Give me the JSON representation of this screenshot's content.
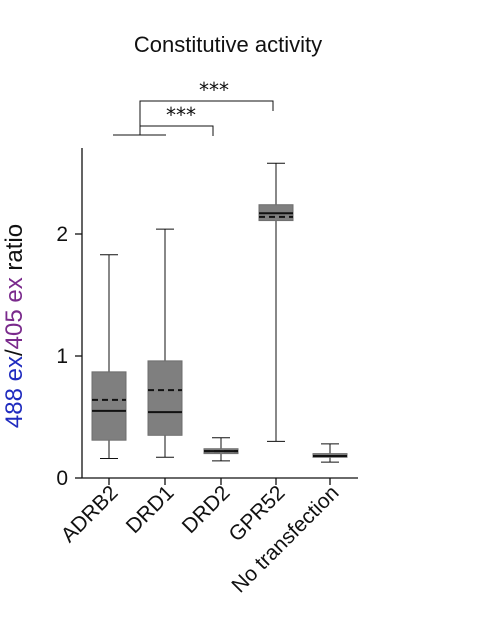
{
  "chart_data": {
    "type": "box",
    "title": "Constitutive activity",
    "ylabel": {
      "parts": [
        {
          "text": "488 ex",
          "color": "#1f2bbf"
        },
        {
          "text": "/",
          "color": "#111111"
        },
        {
          "text": "405 ex",
          "color": "#7a2a8c"
        },
        {
          "text": " ratio",
          "color": "#111111"
        }
      ]
    },
    "xlabel": "",
    "ylim": [
      0,
      2.7
    ],
    "yticks": [
      0,
      1,
      2
    ],
    "ytick_labels": [
      "0",
      "1",
      "2"
    ],
    "categories": [
      "ADRB2",
      "DRD1",
      "DRD2",
      "GPR52",
      "No transfection"
    ],
    "boxes": [
      {
        "category": "ADRB2",
        "whisker_low": 0.16,
        "q1": 0.31,
        "median": 0.55,
        "mean": 0.64,
        "q3": 0.87,
        "whisker_high": 1.83
      },
      {
        "category": "DRD1",
        "whisker_low": 0.17,
        "q1": 0.35,
        "median": 0.54,
        "mean": 0.72,
        "q3": 0.96,
        "whisker_high": 2.04
      },
      {
        "category": "DRD2",
        "whisker_low": 0.14,
        "q1": 0.2,
        "median": 0.22,
        "mean": 0.22,
        "q3": 0.24,
        "whisker_high": 0.33
      },
      {
        "category": "GPR52",
        "whisker_low": 0.3,
        "q1": 2.11,
        "median": 2.17,
        "mean": 2.14,
        "q3": 2.24,
        "whisker_high": 2.58
      },
      {
        "category": "No transfection",
        "whisker_low": 0.13,
        "q1": 0.17,
        "median": 0.18,
        "mean": 0.18,
        "q3": 0.2,
        "whisker_high": 0.28
      }
    ],
    "significance": [
      {
        "from": "DRD2",
        "to": "ADRB2+DRD1",
        "label": "***"
      },
      {
        "from": "GPR52",
        "to": "ADRB2+DRD1",
        "label": "***"
      }
    ],
    "style": {
      "box_fill": "#7f7f7f",
      "box_stroke": "#6e6e6e",
      "median_line": "solid",
      "mean_line": "dashed",
      "line_color": "#111111"
    }
  }
}
